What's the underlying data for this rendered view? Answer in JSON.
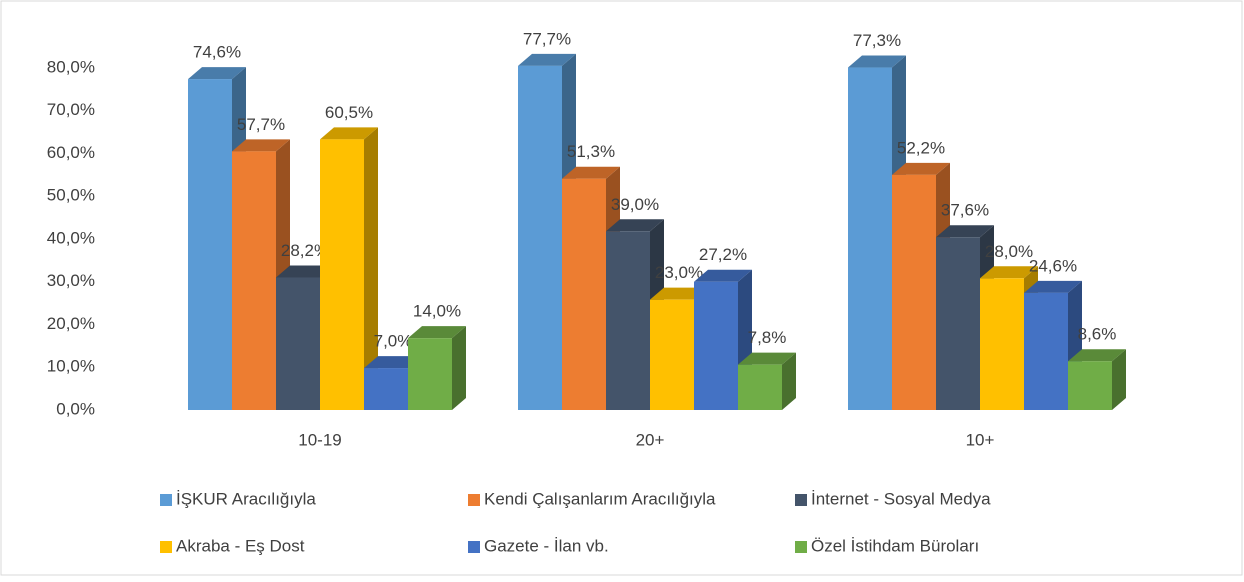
{
  "chart_data": {
    "type": "bar3d",
    "categories": [
      "10-19",
      "20+",
      "10+"
    ],
    "series": [
      {
        "name": "İŞKUR Aracılığıyla",
        "color": "#5b9bd5",
        "values": [
          74.6,
          77.7,
          77.3
        ],
        "value_labels": [
          "74,6%",
          "77,7%",
          "77,3%"
        ]
      },
      {
        "name": "Kendi Çalışanlarım Aracılığıyla",
        "color": "#ed7d31",
        "values": [
          57.7,
          51.3,
          52.2
        ],
        "value_labels": [
          "57,7%",
          "51,3%",
          "52,2%"
        ]
      },
      {
        "name": "İnternet - Sosyal Medya",
        "color": "#44546a",
        "values": [
          28.2,
          39.0,
          37.6
        ],
        "value_labels": [
          "28,2%",
          "39,0%",
          "37,6%"
        ]
      },
      {
        "name": "Akraba - Eş Dost",
        "color": "#ffc000",
        "values": [
          60.5,
          23.0,
          28.0
        ],
        "value_labels": [
          "60,5%",
          "23,0%",
          "28,0%"
        ]
      },
      {
        "name": "Gazete - İlan vb.",
        "color": "#4472c4",
        "values": [
          7.0,
          27.2,
          24.6
        ],
        "value_labels": [
          "7,0%",
          "27,2%",
          "24,6%"
        ]
      },
      {
        "name": "Özel İstihdam Büroları",
        "color": "#70ad47",
        "values": [
          14.0,
          7.8,
          8.6
        ],
        "value_labels": [
          "14,0%",
          "7,8%",
          "8,6%"
        ]
      }
    ],
    "ylim": [
      0,
      80
    ],
    "yticks": [
      {
        "value": 0,
        "label": "0,0%"
      },
      {
        "value": 10,
        "label": "10,0%"
      },
      {
        "value": 20,
        "label": "20,0%"
      },
      {
        "value": 30,
        "label": "30,0%"
      },
      {
        "value": 40,
        "label": "40,0%"
      },
      {
        "value": 50,
        "label": "50,0%"
      },
      {
        "value": 60,
        "label": "60,0%"
      },
      {
        "value": 70,
        "label": "70,0%"
      },
      {
        "value": 80,
        "label": "80,0%"
      }
    ],
    "legend": "bottom"
  }
}
